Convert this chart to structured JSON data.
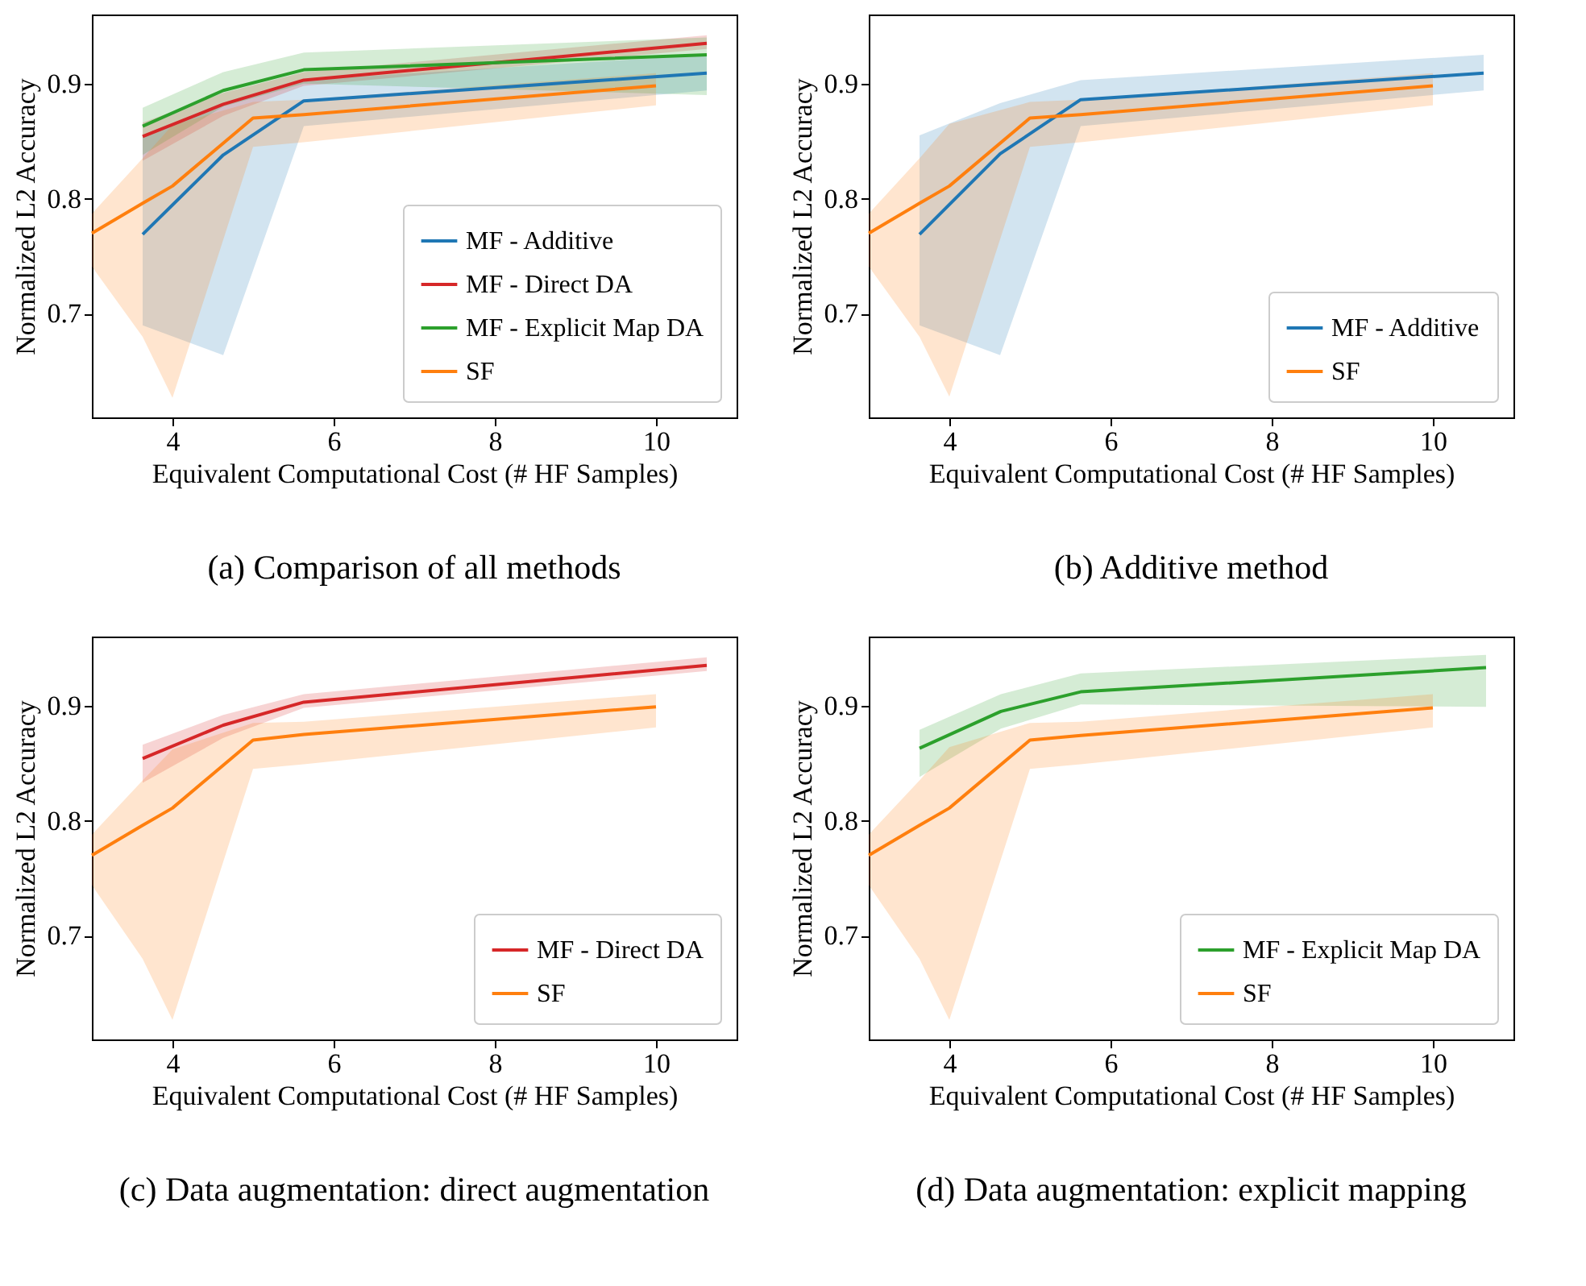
{
  "chart_data": [
    {
      "type": "line",
      "title": "(a) Comparison of all methods",
      "xlabel": "Equivalent Computational Cost (# HF Samples)",
      "ylabel": "Normalized L2 Accuracy",
      "xlim": [
        3,
        11
      ],
      "ylim": [
        0.61,
        0.96
      ],
      "xticks": [
        4,
        6,
        8,
        10
      ],
      "yticks": [
        0.7,
        0.8,
        0.9
      ],
      "legend": "bottom right",
      "series": [
        {
          "name": "MF - Additive",
          "color": "#1f77b4",
          "x": [
            3.63,
            4.63,
            5.63,
            10.63
          ],
          "values": [
            0.769,
            0.838,
            0.885,
            0.909
          ],
          "lower": [
            0.69,
            0.664,
            0.863,
            0.894
          ],
          "upper": [
            0.855,
            0.883,
            0.903,
            0.925
          ]
        },
        {
          "name": "MF - Direct DA",
          "color": "#d62728",
          "x": [
            3.63,
            4.63,
            5.63,
            10.63
          ],
          "values": [
            0.854,
            0.882,
            0.903,
            0.935
          ],
          "lower": [
            0.833,
            0.872,
            0.898,
            0.93
          ],
          "upper": [
            0.866,
            0.892,
            0.91,
            0.942
          ]
        },
        {
          "name": "MF - Explicit Map DA",
          "color": "#2ca02c",
          "x": [
            3.63,
            4.63,
            5.63,
            10.63
          ],
          "values": [
            0.863,
            0.894,
            0.912,
            0.925
          ],
          "lower": [
            0.838,
            0.88,
            0.9,
            0.89
          ],
          "upper": [
            0.879,
            0.91,
            0.927,
            0.94
          ]
        },
        {
          "name": "SF",
          "color": "#ff7f0e",
          "x": [
            3,
            3.63,
            4,
            5,
            5.63,
            10
          ],
          "values": [
            0.77,
            0.796,
            0.811,
            0.87,
            0.873,
            0.898
          ],
          "lower": [
            0.741,
            0.68,
            0.627,
            0.845,
            0.849,
            0.881
          ],
          "upper": [
            0.787,
            0.835,
            0.864,
            0.884,
            0.886,
            0.909
          ]
        }
      ]
    },
    {
      "type": "line",
      "title": "(b) Additive method",
      "xlabel": "Equivalent Computational Cost (# HF Samples)",
      "ylabel": "Normalized L2 Accuracy",
      "xlim": [
        3,
        11
      ],
      "ylim": [
        0.61,
        0.96
      ],
      "xticks": [
        4,
        6,
        8,
        10
      ],
      "yticks": [
        0.7,
        0.8,
        0.9
      ],
      "legend": "bottom right",
      "series": [
        {
          "name": "MF - Additive",
          "color": "#1f77b4",
          "x": [
            3.63,
            4.63,
            5.63,
            10.63
          ],
          "values": [
            0.769,
            0.839,
            0.886,
            0.909
          ],
          "lower": [
            0.69,
            0.664,
            0.863,
            0.894
          ],
          "upper": [
            0.855,
            0.883,
            0.903,
            0.925
          ]
        },
        {
          "name": "SF",
          "color": "#ff7f0e",
          "x": [
            3,
            3.63,
            4,
            5,
            5.63,
            10
          ],
          "values": [
            0.77,
            0.796,
            0.811,
            0.87,
            0.873,
            0.898
          ],
          "lower": [
            0.741,
            0.68,
            0.628,
            0.845,
            0.849,
            0.881
          ],
          "upper": [
            0.787,
            0.835,
            0.865,
            0.884,
            0.886,
            0.909
          ]
        }
      ]
    },
    {
      "type": "line",
      "title": "(c) Data augmentation: direct augmentation",
      "xlabel": "Equivalent Computational Cost (# HF Samples)",
      "ylabel": "Normalized L2 Accuracy",
      "xlim": [
        3,
        11
      ],
      "ylim": [
        0.61,
        0.96
      ],
      "xticks": [
        4,
        6,
        8,
        10
      ],
      "yticks": [
        0.7,
        0.8,
        0.9
      ],
      "legend": "bottom right",
      "series": [
        {
          "name": "MF - Direct DA",
          "color": "#d62728",
          "x": [
            3.63,
            4.63,
            5.63,
            10.63
          ],
          "values": [
            0.854,
            0.883,
            0.903,
            0.935
          ],
          "lower": [
            0.833,
            0.872,
            0.898,
            0.93
          ],
          "upper": [
            0.866,
            0.892,
            0.91,
            0.942
          ]
        },
        {
          "name": "SF",
          "color": "#ff7f0e",
          "x": [
            3,
            3.63,
            4,
            5,
            5.63,
            10
          ],
          "values": [
            0.77,
            0.796,
            0.811,
            0.87,
            0.875,
            0.899
          ],
          "lower": [
            0.744,
            0.68,
            0.627,
            0.845,
            0.849,
            0.881
          ],
          "upper": [
            0.788,
            0.835,
            0.862,
            0.885,
            0.886,
            0.91
          ]
        }
      ]
    },
    {
      "type": "line",
      "title": "(d) Data augmentation: explicit mapping",
      "xlabel": "Equivalent Computational Cost (# HF Samples)",
      "ylabel": "Normalized L2 Accuracy",
      "xlim": [
        3,
        11
      ],
      "ylim": [
        0.61,
        0.96
      ],
      "xticks": [
        4,
        6,
        8,
        10
      ],
      "yticks": [
        0.7,
        0.8,
        0.9
      ],
      "legend": "bottom right",
      "series": [
        {
          "name": "MF - Explicit Map DA",
          "color": "#2ca02c",
          "x": [
            3.63,
            4.64,
            5.63,
            10.66
          ],
          "values": [
            0.863,
            0.895,
            0.912,
            0.933
          ],
          "lower": [
            0.838,
            0.88,
            0.901,
            0.899
          ],
          "upper": [
            0.879,
            0.91,
            0.928,
            0.944
          ]
        },
        {
          "name": "SF",
          "color": "#ff7f0e",
          "x": [
            3,
            3.63,
            4,
            5,
            5.63,
            10
          ],
          "values": [
            0.77,
            0.796,
            0.811,
            0.87,
            0.874,
            0.898
          ],
          "lower": [
            0.744,
            0.68,
            0.627,
            0.845,
            0.849,
            0.881
          ],
          "upper": [
            0.788,
            0.835,
            0.864,
            0.885,
            0.886,
            0.91
          ]
        }
      ]
    }
  ]
}
